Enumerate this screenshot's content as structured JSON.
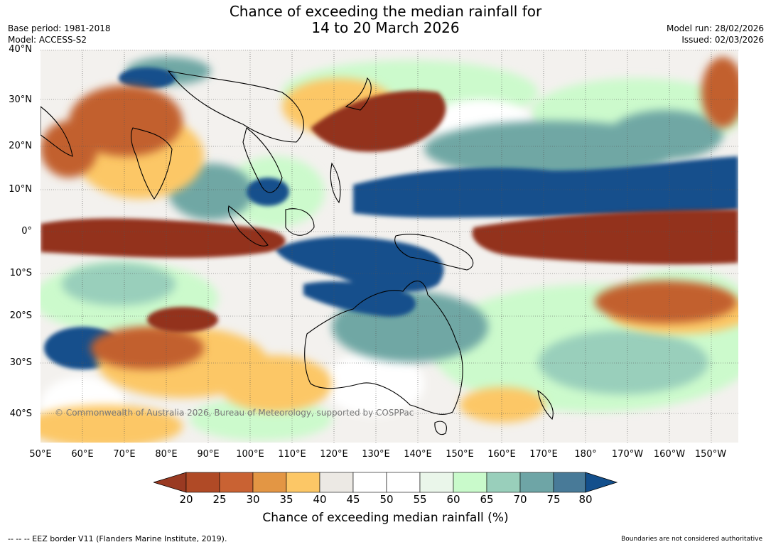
{
  "title": {
    "line1": "Chance of exceeding the median rainfall for",
    "line2": "14 to 20 March 2026"
  },
  "meta": {
    "base_period": "Base period: 1981-2018",
    "model": "Model: ACCESS-S2",
    "model_run": "Model run: 28/02/2026",
    "issued": "Issued: 02/03/2026"
  },
  "map": {
    "lat_labels": [
      "40°N",
      "30°N",
      "20°N",
      "10°N",
      "0°",
      "10°S",
      "20°S",
      "30°S",
      "40°S"
    ],
    "lon_labels": [
      "50°E",
      "60°E",
      "70°E",
      "80°E",
      "90°E",
      "100°E",
      "110°E",
      "120°E",
      "130°E",
      "140°E",
      "150°E",
      "160°E",
      "170°E",
      "180°",
      "170°W",
      "160°W",
      "150°W"
    ],
    "copyright": "© Commonwealth of Australia 2026, Bureau of Meteorology, supported by COSPPac",
    "colors": {
      "dry_strong": "#93301f",
      "dry": "#c2602f",
      "dry_light": "#fcc766",
      "neutral": "#ece9e4",
      "wet_light": "#ccfacc",
      "wet": "#6fa7a4",
      "wet_strong": "#134f8c",
      "land_outline": "#000000"
    },
    "regions": [
      {
        "name": "west-pacific-wet-band",
        "category": "80"
      },
      {
        "name": "maritime-continent-wet",
        "category": "80"
      },
      {
        "name": "north-australia-wet",
        "category": "80"
      },
      {
        "name": "equatorial-indian-ocean-dry",
        "category": "20"
      },
      {
        "name": "equatorial-pacific-dry",
        "category": "20"
      },
      {
        "name": "china-japan-dry",
        "category": "20"
      },
      {
        "name": "south-indian-ocean-wet",
        "category": "75"
      }
    ]
  },
  "colorbar": {
    "ticks": [
      "20",
      "25",
      "30",
      "35",
      "40",
      "45",
      "50",
      "55",
      "60",
      "65",
      "70",
      "75",
      "80"
    ],
    "colors": [
      "#9a3a22",
      "#b04a26",
      "#c96233",
      "#e39644",
      "#fcc766",
      "#ece9e4",
      "#ffffff",
      "#ffffff",
      "#eaf6ea",
      "#c9facb",
      "#99cfbb",
      "#6ea5a6",
      "#487a98",
      "#134f8c"
    ],
    "label": "Chance of exceeding median rainfall (%)"
  },
  "footer": {
    "left": "--  --  -- EEZ border V11 (Flanders Marine Institute, 2019).",
    "right": "Boundaries are not considered authoritative"
  }
}
